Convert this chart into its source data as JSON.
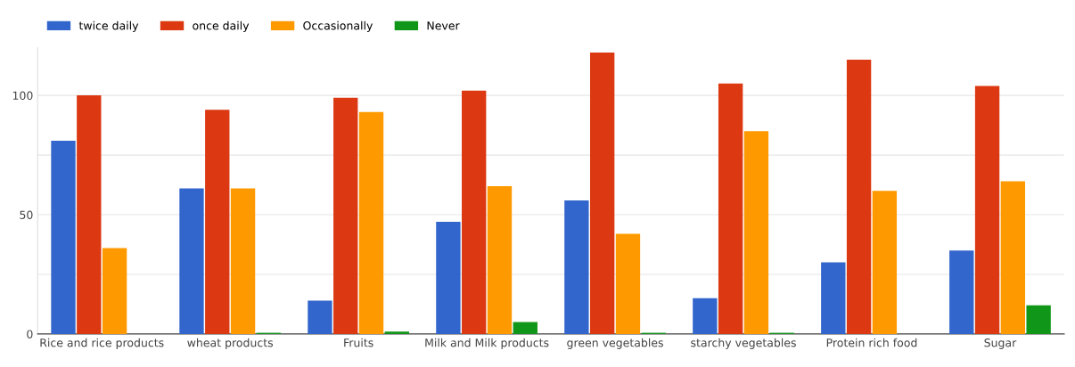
{
  "chart_data": {
    "type": "bar",
    "categories": [
      "Rice and rice products",
      "wheat products",
      "Fruits",
      "Milk and Milk products",
      "green vegetables",
      "starchy vegetables",
      "Protein rich food",
      "Sugar"
    ],
    "series": [
      {
        "name": "twice daily",
        "color": "#3366cc",
        "values": [
          81,
          61,
          14,
          47,
          56,
          15,
          30,
          35
        ]
      },
      {
        "name": "once daily",
        "color": "#dc3912",
        "values": [
          100,
          94,
          99,
          102,
          118,
          105,
          115,
          104
        ]
      },
      {
        "name": "Occasionally",
        "color": "#ff9900",
        "values": [
          36,
          61,
          93,
          62,
          42,
          85,
          60,
          64
        ]
      },
      {
        "name": "Never",
        "color": "#109618",
        "values": [
          0,
          0.5,
          1,
          5,
          0.5,
          0.5,
          0,
          12
        ]
      }
    ],
    "ylim": [
      0,
      120
    ],
    "yticks": [
      0,
      {
        "value": 25,
        "label": null
      },
      50,
      {
        "value": 75,
        "label": null
      },
      100
    ],
    "grid": "y",
    "legend": "top left"
  }
}
